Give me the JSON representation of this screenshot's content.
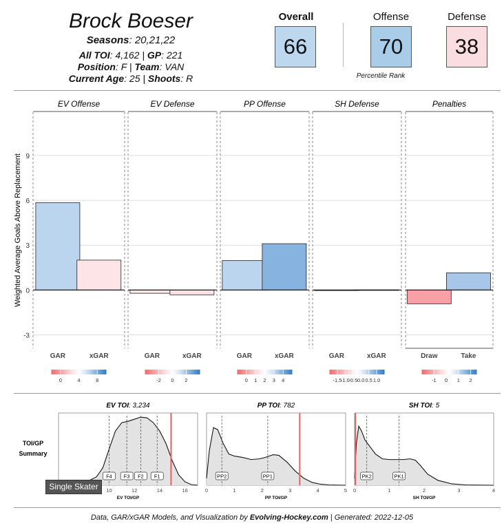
{
  "header": {
    "name": "Brock Boeser",
    "seasons_label": "Seasons",
    "seasons_value": ": 20,21,22",
    "toi_label": "All TOI",
    "toi_value": ": 4,162 | ",
    "gp_label": "GP",
    "gp_value": ": 221",
    "position_label": "Position",
    "position_value": ": F | ",
    "team_label": "Team",
    "team_value": ": VAN",
    "age_label": "Current Age",
    "age_value": ": 25 | ",
    "shoots_label": "Shoots",
    "shoots_value": ": R"
  },
  "ranks": {
    "overall_label": "Overall",
    "overall_value": "66",
    "offense_label": "Offense",
    "offense_value": "70",
    "defense_label": "Defense",
    "defense_value": "38",
    "caption": "Percentile Rank",
    "colors": {
      "overall": "#bdd7ee",
      "offense": "#a9cce8",
      "defense": "#f9dde0"
    }
  },
  "chart_data": [
    {
      "type": "bar",
      "ylabel": "Weighted Average Goals Above Replacement",
      "ylim": [
        -3.9,
        11.9
      ],
      "yticks": [
        "9",
        "6",
        "3",
        "0",
        "-3"
      ],
      "ytick_values": [
        9,
        6,
        3,
        0,
        -3
      ],
      "panels": [
        {
          "title": "EV Offense",
          "categories": [
            "GAR",
            "xGAR"
          ],
          "values": [
            5.85,
            2.0
          ],
          "colors": [
            "#bcd5ee",
            "#fde4e6"
          ],
          "scale": {
            "ticks": [
              "0",
              "4",
              "8"
            ],
            "tick_values": [
              0,
              4,
              8
            ],
            "range": [
              -2,
              10
            ]
          }
        },
        {
          "title": "EV Defense",
          "categories": [
            "GAR",
            "xGAR"
          ],
          "values": [
            -0.22,
            -0.32
          ],
          "colors": [
            "#fbe5e7",
            "#fce2e4"
          ],
          "scale": {
            "ticks": [
              "-2",
              "0",
              "2"
            ],
            "tick_values": [
              -2,
              0,
              2
            ],
            "range": [
              -4,
              4
            ]
          }
        },
        {
          "title": "PP Offense",
          "categories": [
            "GAR",
            "xGAR"
          ],
          "values": [
            1.97,
            3.1
          ],
          "colors": [
            "#bcd5ee",
            "#86b3df"
          ],
          "scale": {
            "ticks": [
              "0",
              "1",
              "2",
              "3",
              "4"
            ],
            "tick_values": [
              0,
              1,
              2,
              3,
              4
            ],
            "range": [
              -1,
              5
            ]
          }
        },
        {
          "title": "SH Defense",
          "categories": [
            "GAR",
            "xGAR"
          ],
          "values": [
            0.0,
            0.01
          ],
          "colors": [
            "#ffffff",
            "#ffffff"
          ],
          "scale": {
            "ticks": [
              "-1.5",
              "-1.0",
              "-0.5",
              "0.0",
              "0.5",
              "1.0"
            ],
            "tick_values": [
              -1.5,
              -1.0,
              -0.5,
              0.0,
              0.5,
              1.0
            ],
            "range": [
              -2.0,
              1.5
            ]
          }
        },
        {
          "title": "Penalties",
          "categories": [
            "Draw",
            "Take"
          ],
          "values": [
            -0.92,
            1.15
          ],
          "colors": [
            "#f7a1a6",
            "#a8c7e8"
          ],
          "scale": {
            "ticks": [
              "-1",
              "0",
              "1",
              "2"
            ],
            "tick_values": [
              -1,
              0,
              1,
              2
            ],
            "range": [
              -2,
              2.5
            ]
          }
        }
      ]
    },
    {
      "type": "area",
      "side_label_1": "TOI/GP",
      "side_label_2": "Summary",
      "tag": "Single Skater",
      "panels": [
        {
          "title_label": "EV TOI",
          "title_value": ": 3,234",
          "xlabel": "EV TOI/GP",
          "xlim": [
            6,
            17
          ],
          "xticks": [
            "8",
            "10",
            "12",
            "14",
            "16"
          ],
          "xtick_values": [
            8,
            10,
            12,
            14,
            16
          ],
          "player_value": 14.9,
          "lines": [
            {
              "label": "F4",
              "x": 10.0
            },
            {
              "label": "F3",
              "x": 11.4
            },
            {
              "label": "F2",
              "x": 12.5
            },
            {
              "label": "F1",
              "x": 13.8
            }
          ],
          "density_x": [
            6,
            7,
            8,
            9,
            9.5,
            10,
            10.5,
            11,
            11.5,
            12,
            12.5,
            13,
            13.5,
            14,
            14.5,
            15,
            15.5,
            16,
            16.5,
            17
          ],
          "density_y": [
            0,
            0.005,
            0.03,
            0.12,
            0.25,
            0.52,
            0.78,
            0.9,
            0.92,
            0.95,
            0.98,
            0.97,
            0.9,
            0.78,
            0.6,
            0.35,
            0.15,
            0.05,
            0.01,
            0
          ]
        },
        {
          "title_label": "PP TOI",
          "title_value": ": 782",
          "xlabel": "PP TOI/GP",
          "xlim": [
            0,
            5
          ],
          "xticks": [
            "0",
            "1",
            "2",
            "3",
            "4",
            "5"
          ],
          "xtick_values": [
            0,
            1,
            2,
            3,
            4,
            5
          ],
          "player_value": 3.35,
          "lines": [
            {
              "label": "PP2",
              "x": 0.55
            },
            {
              "label": "PP1",
              "x": 2.2
            }
          ],
          "density_x": [
            0,
            0.1,
            0.25,
            0.4,
            0.6,
            0.8,
            1.0,
            1.3,
            1.6,
            1.9,
            2.1,
            2.4,
            2.6,
            2.9,
            3.2,
            3.5,
            3.8,
            4.1,
            4.4,
            5
          ],
          "density_y": [
            0.1,
            0.5,
            0.83,
            0.8,
            0.6,
            0.45,
            0.42,
            0.4,
            0.37,
            0.38,
            0.4,
            0.44,
            0.43,
            0.33,
            0.2,
            0.1,
            0.04,
            0.015,
            0.005,
            0
          ]
        },
        {
          "title_label": "SH TOI",
          "title_value": ": 5",
          "xlabel": "SH TOI/GP",
          "xlim": [
            0,
            4
          ],
          "xticks": [
            "0",
            "1",
            "2",
            "3",
            "4"
          ],
          "xtick_values": [
            0,
            1,
            2,
            3,
            4
          ],
          "player_value": 0.02,
          "lines": [
            {
              "label": "PK2",
              "x": 0.35
            },
            {
              "label": "PK1",
              "x": 1.28
            }
          ],
          "density_x": [
            0,
            0.05,
            0.12,
            0.2,
            0.3,
            0.45,
            0.6,
            0.8,
            1.0,
            1.2,
            1.4,
            1.6,
            1.75,
            1.9,
            2.1,
            2.4,
            2.8,
            3.2,
            4
          ],
          "density_y": [
            0.1,
            0.6,
            0.85,
            0.78,
            0.65,
            0.55,
            0.45,
            0.38,
            0.37,
            0.37,
            0.37,
            0.38,
            0.36,
            0.28,
            0.16,
            0.07,
            0.02,
            0.005,
            0
          ]
        }
      ]
    }
  ],
  "footer": {
    "text1": "Data, GAR/xGAR Models, and Visualization by ",
    "brand": "Evolving-Hockey.com",
    "text2": " | Generated:  2022-12-05"
  }
}
